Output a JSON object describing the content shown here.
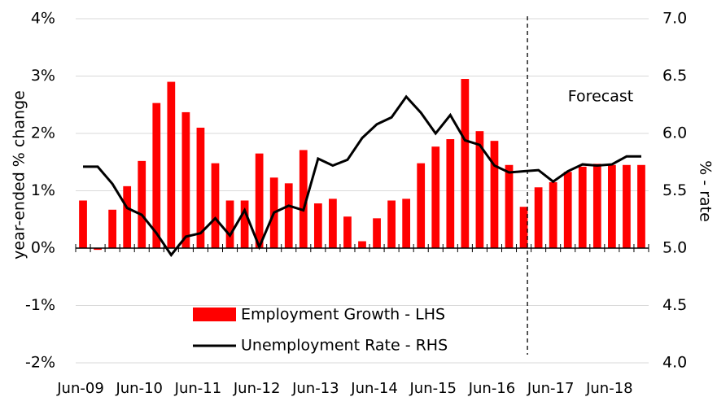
{
  "chart_data": {
    "type": "bar-line",
    "categories": [
      "Jun-09",
      null,
      null,
      null,
      "Jun-10",
      null,
      null,
      null,
      "Jun-11",
      null,
      null,
      null,
      "Jun-12",
      null,
      null,
      null,
      "Jun-13",
      null,
      null,
      null,
      "Jun-14",
      null,
      null,
      null,
      "Jun-15",
      null,
      null,
      null,
      "Jun-16",
      null,
      null,
      null,
      "Jun-17",
      null,
      null,
      null,
      "Jun-18",
      null,
      null
    ],
    "series": [
      {
        "name": "Employment Growth - LHS",
        "type": "bar",
        "color": "#ff0000",
        "values": [
          0.83,
          -0.03,
          0.67,
          1.08,
          1.52,
          2.53,
          2.9,
          2.37,
          2.1,
          1.48,
          0.83,
          0.83,
          1.65,
          1.23,
          1.13,
          1.71,
          0.78,
          0.86,
          0.55,
          0.12,
          0.52,
          0.83,
          0.86,
          1.48,
          1.77,
          1.9,
          2.95,
          2.04,
          1.87,
          1.45,
          0.72,
          1.06,
          1.15,
          1.33,
          1.42,
          1.47,
          1.45,
          1.45,
          1.45
        ]
      },
      {
        "name": "Unemployment Rate - RHS",
        "type": "line",
        "axis": "y2",
        "color": "#000000",
        "values": [
          5.71,
          5.71,
          5.56,
          5.35,
          5.29,
          5.13,
          4.94,
          5.1,
          5.13,
          5.26,
          5.11,
          5.33,
          5.01,
          5.31,
          5.37,
          5.33,
          5.78,
          5.72,
          5.77,
          5.96,
          6.08,
          6.14,
          6.32,
          6.18,
          6.0,
          6.16,
          5.94,
          5.9,
          5.72,
          5.66,
          5.67,
          5.68,
          5.58,
          5.67,
          5.73,
          5.72,
          5.73,
          5.8,
          5.8
        ]
      }
    ],
    "ylabel": "year-ended % change",
    "y2label": "% - rate",
    "annotation": "Forecast",
    "ylim": [
      -2,
      4
    ],
    "yticks": [
      {
        "value": -2,
        "label": "-2%"
      },
      {
        "value": -1,
        "label": "-1%"
      },
      {
        "value": 0,
        "label": "0%"
      },
      {
        "value": 1,
        "label": "1%"
      },
      {
        "value": 2,
        "label": "2%"
      },
      {
        "value": 3,
        "label": "3%"
      },
      {
        "value": 4,
        "label": "4%"
      }
    ],
    "y2lim": [
      4,
      7
    ],
    "y2ticks": [
      {
        "value": 4,
        "label": "4.0"
      },
      {
        "value": 4.5,
        "label": "4.5"
      },
      {
        "value": 5,
        "label": "5.0"
      },
      {
        "value": 5.5,
        "label": "5.5"
      },
      {
        "value": 6,
        "label": "6.0"
      },
      {
        "value": 6.5,
        "label": "6.5"
      },
      {
        "value": 7,
        "label": "7.0"
      }
    ],
    "grid": true
  }
}
